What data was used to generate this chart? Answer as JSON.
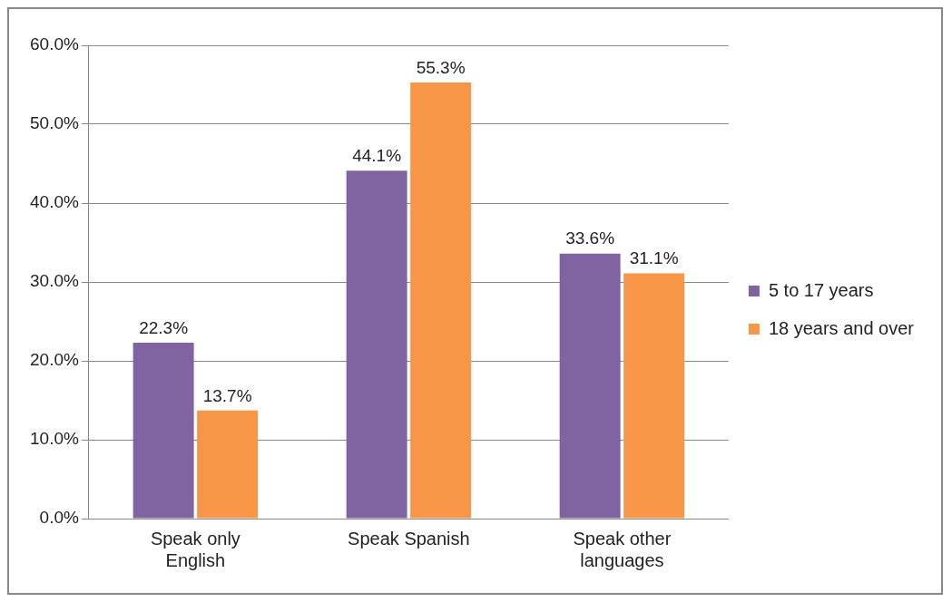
{
  "chart_data": {
    "type": "bar",
    "categories": [
      "Speak only English",
      "Speak Spanish",
      "Speak other languages"
    ],
    "series": [
      {
        "name": "5 to 17 years",
        "color": "#8064a2",
        "values": [
          22.3,
          44.1,
          33.6
        ]
      },
      {
        "name": "18 years and over",
        "color": "#f79646",
        "values": [
          13.7,
          55.3,
          31.1
        ]
      }
    ],
    "ylim": [
      0,
      60
    ],
    "yticks": [
      {
        "value": 0,
        "label": "0.0%"
      },
      {
        "value": 10,
        "label": "10.0%"
      },
      {
        "value": 20,
        "label": "20.0%"
      },
      {
        "value": 30,
        "label": "30.0%"
      },
      {
        "value": 40,
        "label": "40.0%"
      },
      {
        "value": 50,
        "label": "50.0%"
      },
      {
        "value": 60,
        "label": "60.0%"
      }
    ],
    "value_labels": [
      [
        "22.3%",
        "44.1%",
        "33.6%"
      ],
      [
        "13.7%",
        "55.3%",
        "31.1%"
      ]
    ],
    "grid": "y",
    "legend": "right"
  }
}
